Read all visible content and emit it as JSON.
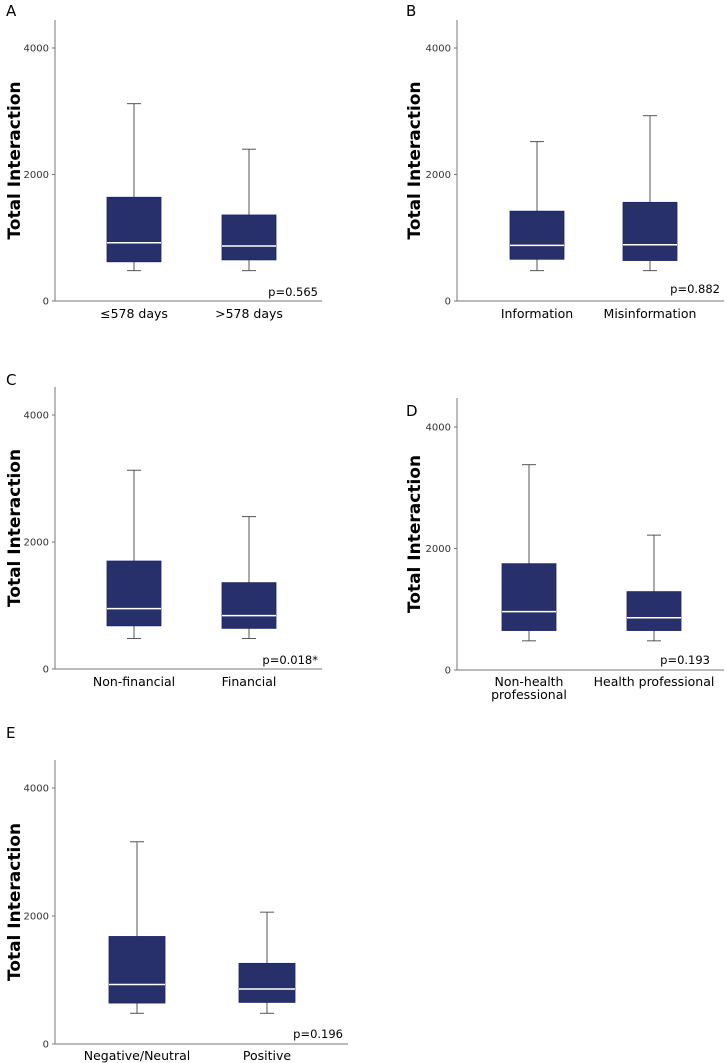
{
  "colors": {
    "box_fill": "#27306b",
    "median": "#ffffff",
    "axis": "#777777",
    "whisker": "#555555"
  },
  "chart_data": [
    {
      "type": "box",
      "panel": "A",
      "ylabel": "Total Interaction",
      "ylim": [
        0,
        4400
      ],
      "yticks": [
        0,
        2000,
        4000
      ],
      "categories": [
        "≤578 days",
        ">578 days"
      ],
      "boxes": [
        {
          "whisker_low": 480,
          "q1": 620,
          "median": 920,
          "q3": 1640,
          "whisker_high": 3120
        },
        {
          "whisker_low": 480,
          "q1": 650,
          "median": 870,
          "q3": 1360,
          "whisker_high": 2400
        }
      ],
      "annotation": "p=0.565"
    },
    {
      "type": "box",
      "panel": "B",
      "ylabel": "Total Interaction",
      "ylim": [
        0,
        4400
      ],
      "yticks": [
        0,
        2000,
        4000
      ],
      "categories": [
        "Information",
        "Misinformation"
      ],
      "boxes": [
        {
          "whisker_low": 480,
          "q1": 660,
          "median": 880,
          "q3": 1420,
          "whisker_high": 2520
        },
        {
          "whisker_low": 480,
          "q1": 640,
          "median": 890,
          "q3": 1560,
          "whisker_high": 2930
        }
      ],
      "annotation": "p=0.882"
    },
    {
      "type": "box",
      "panel": "C",
      "ylabel": "Total Interaction",
      "ylim": [
        0,
        4400
      ],
      "yticks": [
        0,
        2000,
        4000
      ],
      "categories": [
        "Non-financial",
        "Financial"
      ],
      "boxes": [
        {
          "whisker_low": 480,
          "q1": 680,
          "median": 950,
          "q3": 1700,
          "whisker_high": 3130
        },
        {
          "whisker_low": 480,
          "q1": 640,
          "median": 840,
          "q3": 1360,
          "whisker_high": 2400
        }
      ],
      "annotation": "p=0.018*"
    },
    {
      "type": "box",
      "panel": "D",
      "ylabel": "Total Interaction",
      "ylim": [
        0,
        4400
      ],
      "yticks": [
        0,
        2000,
        4000
      ],
      "categories": [
        "Non-health professional",
        "Health professional"
      ],
      "category_lines": [
        [
          "Non-health",
          "professional"
        ],
        [
          "Health professional"
        ]
      ],
      "boxes": [
        {
          "whisker_low": 480,
          "q1": 650,
          "median": 960,
          "q3": 1750,
          "whisker_high": 3380
        },
        {
          "whisker_low": 480,
          "q1": 650,
          "median": 860,
          "q3": 1290,
          "whisker_high": 2220
        }
      ],
      "annotation": "p=0.193"
    },
    {
      "type": "box",
      "panel": "E",
      "ylabel": "Total Interaction",
      "ylim": [
        0,
        4400
      ],
      "yticks": [
        0,
        2000,
        4000
      ],
      "categories": [
        "Negative/Neutral",
        "Positive"
      ],
      "boxes": [
        {
          "whisker_low": 480,
          "q1": 640,
          "median": 930,
          "q3": 1680,
          "whisker_high": 3160
        },
        {
          "whisker_low": 480,
          "q1": 650,
          "median": 860,
          "q3": 1260,
          "whisker_high": 2060
        }
      ],
      "annotation": "p=0.196"
    }
  ]
}
